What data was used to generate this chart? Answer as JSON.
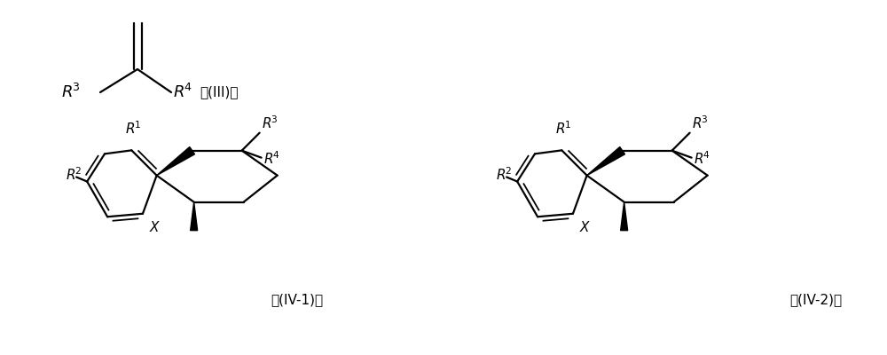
{
  "background_color": "#ffffff",
  "fig_width": 10.0,
  "fig_height": 4.0,
  "dpi": 100,
  "label_III": "式(III)；",
  "label_IV1": "式(IV-1)或",
  "label_IV2": "式(IV-2)；",
  "text_color": "#000000",
  "line_color": "#000000",
  "xlim": [
    0,
    10
  ],
  "ylim": [
    0,
    4
  ]
}
